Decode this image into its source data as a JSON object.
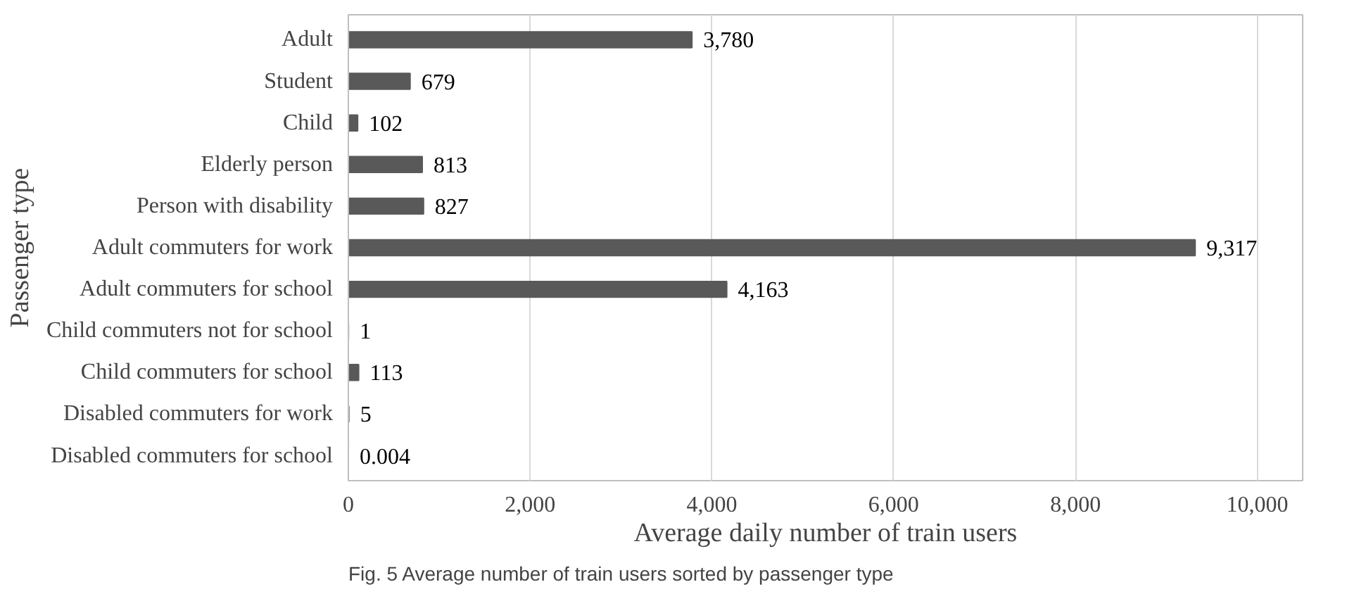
{
  "chart_data": {
    "type": "bar",
    "orientation": "horizontal",
    "xlabel": "Average daily number of train users",
    "ylabel": "Passenger type",
    "categories": [
      "Adult",
      "Student",
      "Child",
      "Elderly person",
      "Person with disability",
      "Adult commuters for work",
      "Adult commuters for school",
      "Child commuters not for school",
      "Child commuters for school",
      "Disabled commuters for work",
      "Disabled commuters for school"
    ],
    "values": [
      3780,
      679,
      102,
      813,
      827,
      9317,
      4163,
      1,
      113,
      5,
      0.004
    ],
    "value_labels": [
      "3,780",
      "679",
      "102",
      "813",
      "827",
      "9,317",
      "4,163",
      "1",
      "113",
      "5",
      "0.004"
    ],
    "color": "#595959",
    "xlim": [
      0,
      10500
    ],
    "xticks": [
      0,
      {
        "value": 2000,
        "label": "2,000"
      },
      {
        "value": 4000,
        "label": "4,000"
      },
      {
        "value": 6000,
        "label": "6,000"
      },
      {
        "value": 8000,
        "label": "8,000"
      },
      {
        "value": 10000,
        "label": "10,000"
      }
    ],
    "grid": "x",
    "annotations": [
      "Fig. 5  Average number of train users sorted by passenger type"
    ]
  }
}
